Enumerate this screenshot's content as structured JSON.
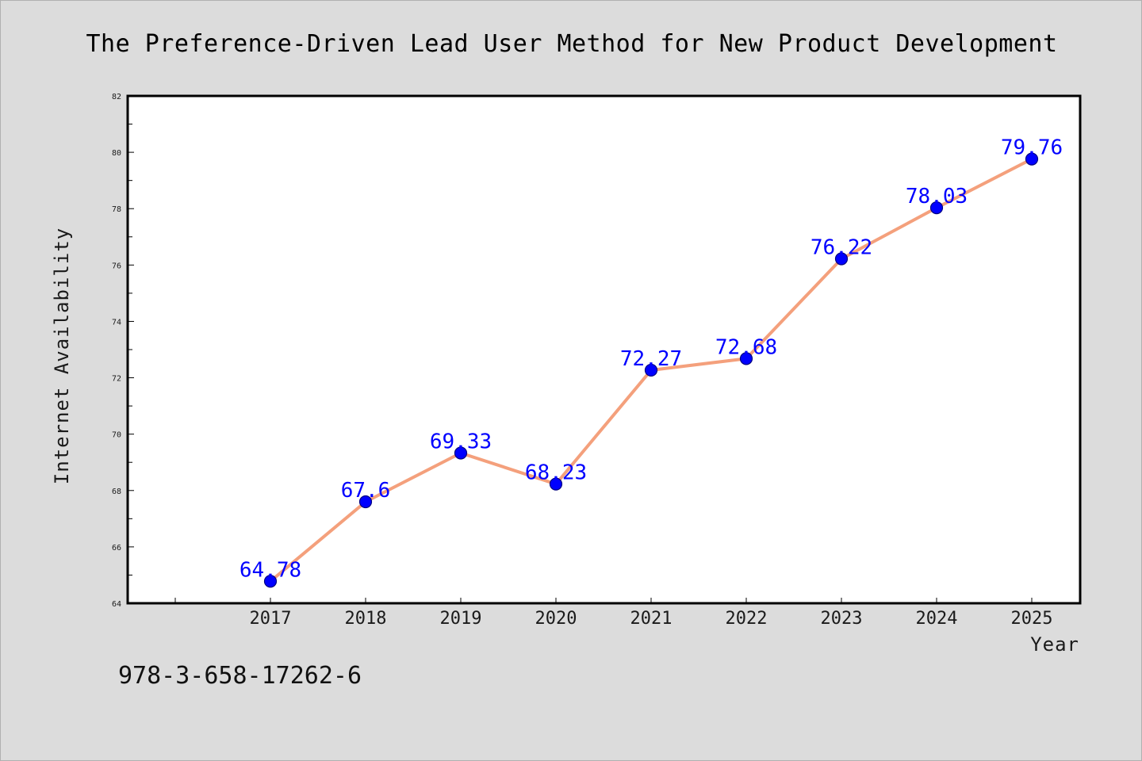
{
  "chart_data": {
    "type": "line",
    "title": "The Preference-Driven Lead User Method for New Product Development",
    "xlabel": "Year",
    "ylabel": "Internet Availability",
    "categories": [
      "2017",
      "2018",
      "2019",
      "2020",
      "2021",
      "2022",
      "2023",
      "2024",
      "2025"
    ],
    "series": [
      {
        "values": [
          64.78,
          67.6,
          69.33,
          68.23,
          72.27,
          72.68,
          76.22,
          78.03,
          79.76
        ]
      }
    ],
    "data_labels": [
      "64.78",
      "67.6",
      "69.33",
      "68.23",
      "72.27",
      "72.68",
      "76.22",
      "78.03",
      "79.76"
    ],
    "ylim": [
      64,
      82
    ],
    "yticks": [
      "64",
      "66",
      "68",
      "70",
      "72",
      "74",
      "76",
      "78",
      "80",
      "82"
    ],
    "x_axis_extra_slot_before_first": true,
    "grid": false,
    "legend": "none",
    "colors": {
      "line": "#f4a07c",
      "marker": "#0000ff",
      "marker_edge": "#000080",
      "labels": "#0000ff",
      "background": "#dcdcdc",
      "plot_area": "#ffffff"
    }
  },
  "annotation": {
    "isbn": "978-3-658-17262-6"
  }
}
